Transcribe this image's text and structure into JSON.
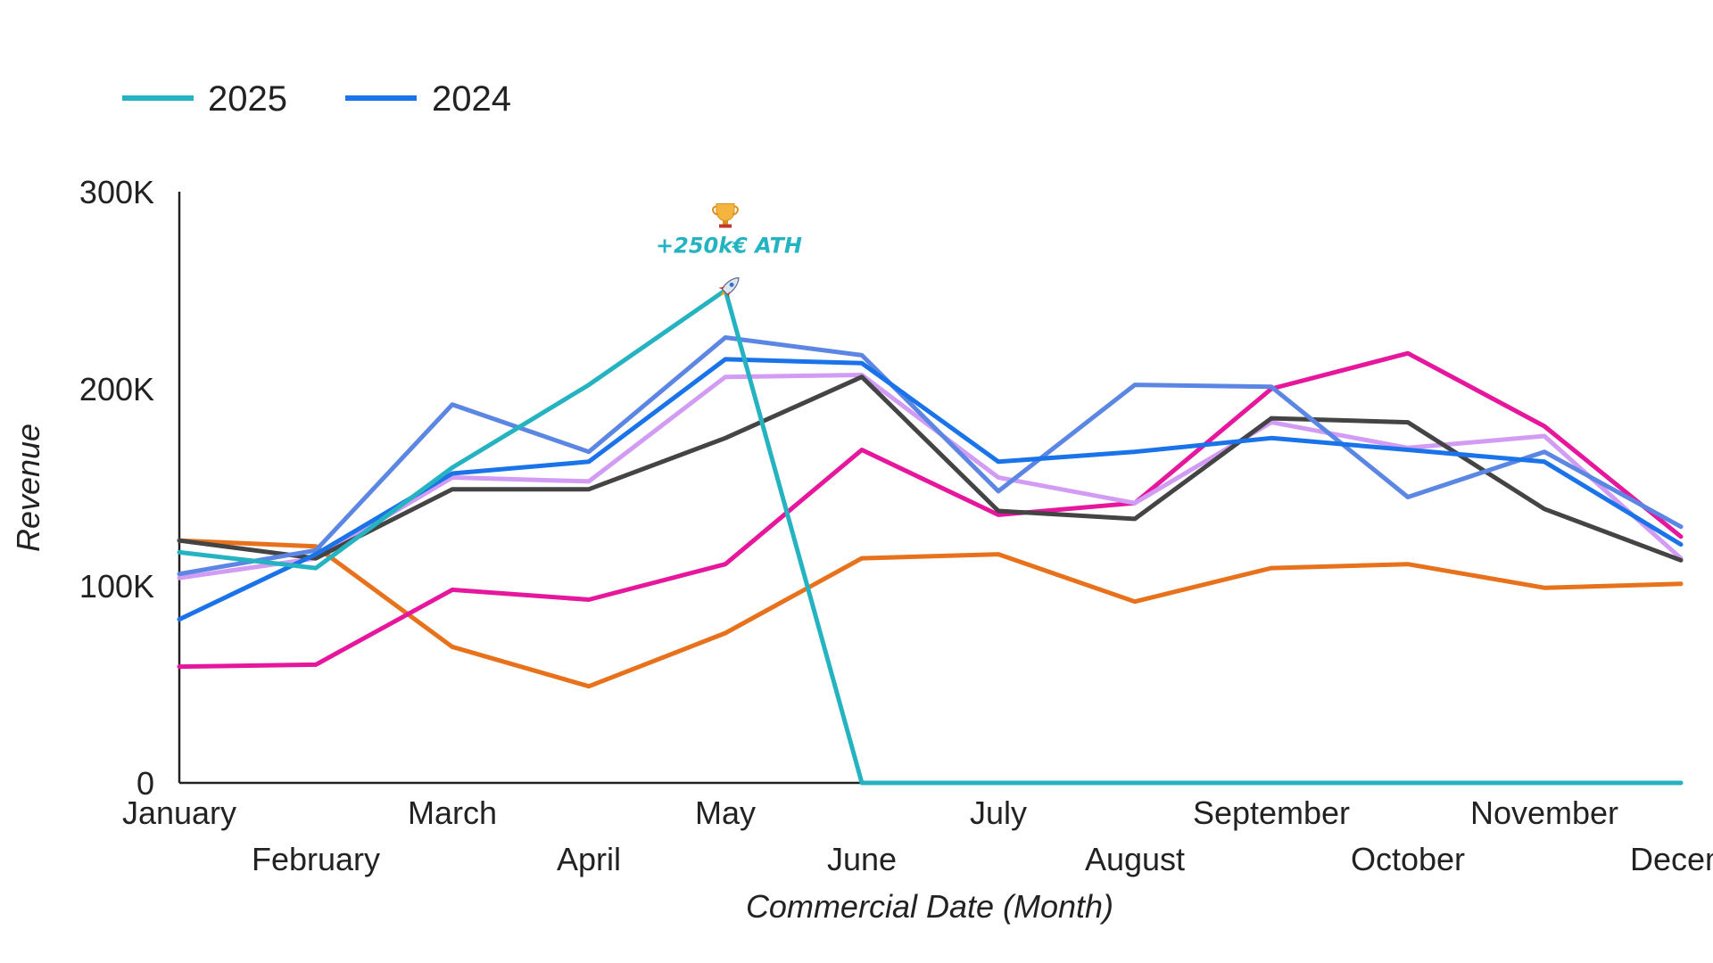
{
  "chart_data": {
    "type": "line",
    "title": "",
    "xlabel": "Commercial Date (Month)",
    "ylabel": "Revenue",
    "ylim": [
      0,
      300000
    ],
    "y_ticks": [
      {
        "value": 0,
        "label": "0"
      },
      {
        "value": 100000,
        "label": "100K"
      },
      {
        "value": 200000,
        "label": "200K"
      },
      {
        "value": 300000,
        "label": "300K"
      }
    ],
    "categories": [
      "January",
      "February",
      "March",
      "April",
      "May",
      "June",
      "July",
      "August",
      "September",
      "October",
      "November",
      "December"
    ],
    "x_tick_labels": [
      "January",
      "February",
      "March",
      "April",
      "May",
      "June",
      "July",
      "August",
      "September",
      "October",
      "November",
      "Decem"
    ],
    "legend_placement": "top-left",
    "grid": false,
    "series": [
      {
        "name": "",
        "color": "#e8711c",
        "values": [
          123000,
          120000,
          69000,
          49000,
          76000,
          114000,
          116000,
          92000,
          109000,
          111000,
          99000,
          101000
        ]
      },
      {
        "name": "",
        "color": "#e6179c",
        "values": [
          59000,
          60000,
          98000,
          93000,
          111000,
          169000,
          136000,
          142000,
          200000,
          218000,
          181000,
          125000
        ]
      },
      {
        "name": "",
        "color": "#d29bf4",
        "values": [
          104000,
          114000,
          155000,
          153000,
          206000,
          207000,
          155000,
          142000,
          183000,
          170000,
          176000,
          114000
        ]
      },
      {
        "name": "",
        "color": "#444444",
        "values": [
          123000,
          114000,
          149000,
          149000,
          175000,
          206000,
          138000,
          134000,
          185000,
          183000,
          139000,
          113000
        ]
      },
      {
        "name": "",
        "color": "#5b86e3",
        "values": [
          106000,
          118000,
          192000,
          168000,
          226000,
          217000,
          148000,
          202000,
          201000,
          145000,
          168000,
          130000
        ]
      },
      {
        "name": "2024",
        "color": "#1a73e8",
        "values": [
          83000,
          116000,
          157000,
          163000,
          215000,
          213000,
          163000,
          168000,
          175000,
          169000,
          163000,
          121000
        ]
      },
      {
        "name": "2025",
        "color": "#26b3c1",
        "values": [
          117000,
          109000,
          160000,
          202000,
          250000,
          0,
          0,
          0,
          0,
          0,
          0,
          0
        ]
      }
    ],
    "legend": [
      {
        "name": "2025",
        "color": "#26b3c1"
      },
      {
        "name": "2024",
        "color": "#1a73e8"
      }
    ],
    "annotations": [
      {
        "text": "+250k€ ATH",
        "category": "May",
        "value": 250000,
        "icon": "trophy-icon",
        "marker": "rocket-icon"
      }
    ]
  }
}
